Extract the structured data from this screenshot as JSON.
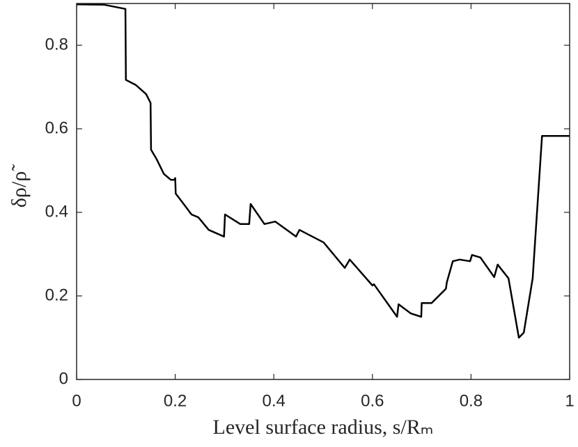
{
  "chart_data": {
    "type": "line",
    "xlabel": "Level surface radius, s/Rₘ",
    "ylabel": "δρ/ρ̃",
    "xlim": [
      0,
      1
    ],
    "ylim": [
      0,
      0.9
    ],
    "xticks": [
      0,
      0.2,
      0.4,
      0.6,
      0.8,
      1
    ],
    "yticks": [
      0,
      0.2,
      0.4,
      0.6,
      0.8
    ],
    "series": [
      {
        "color": "#000000",
        "x": [
          0,
          0.056,
          0.099,
          0.1,
          0.12,
          0.141,
          0.15,
          0.151,
          0.162,
          0.177,
          0.191,
          0.198,
          0.2,
          0.201,
          0.219,
          0.233,
          0.247,
          0.268,
          0.299,
          0.301,
          0.332,
          0.35,
          0.353,
          0.381,
          0.403,
          0.445,
          0.452,
          0.501,
          0.544,
          0.554,
          0.6,
          0.603,
          0.65,
          0.653,
          0.678,
          0.699,
          0.7,
          0.72,
          0.749,
          0.751,
          0.763,
          0.777,
          0.798,
          0.802,
          0.819,
          0.847,
          0.854,
          0.876,
          0.897,
          0.907,
          0.925,
          0.944,
          1
        ],
        "values": [
          0.898,
          0.897,
          0.887,
          0.717,
          0.705,
          0.683,
          0.662,
          0.55,
          0.528,
          0.492,
          0.478,
          0.478,
          0.482,
          0.445,
          0.417,
          0.395,
          0.388,
          0.358,
          0.342,
          0.395,
          0.372,
          0.372,
          0.42,
          0.372,
          0.378,
          0.342,
          0.358,
          0.328,
          0.267,
          0.287,
          0.225,
          0.228,
          0.15,
          0.18,
          0.158,
          0.15,
          0.183,
          0.183,
          0.217,
          0.233,
          0.283,
          0.287,
          0.283,
          0.298,
          0.292,
          0.245,
          0.275,
          0.242,
          0.1,
          0.112,
          0.242,
          0.583,
          0.583
        ]
      }
    ]
  }
}
